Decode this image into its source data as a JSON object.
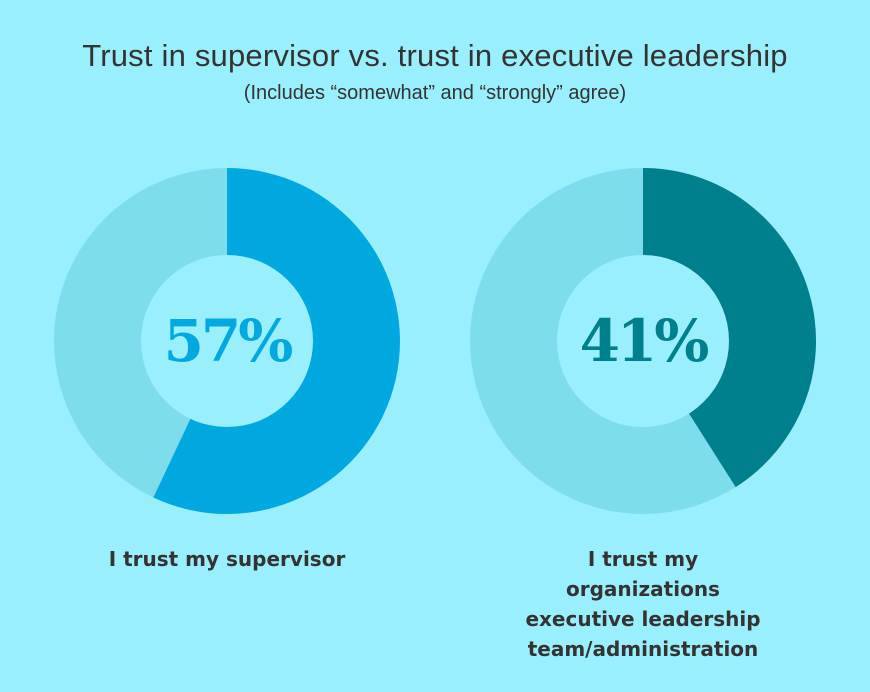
{
  "background": "#9AEFFF",
  "chart_data": {
    "type": "pie",
    "title": "Trust in supervisor vs. trust in executive leadership",
    "subtitle": "(Includes “somewhat” and “strongly” agree)",
    "charts": [
      {
        "value": 57,
        "value_label": "57%",
        "label": "I trust my supervisor",
        "fill_color": "#00A8E0",
        "remainder_color": "#7EDDED",
        "text_color": "#00A8E0",
        "hole_color": "#9AEFFF"
      },
      {
        "value": 41,
        "value_label": "41%",
        "label_lines": [
          "I trust my",
          "organizations",
          "executive leadership",
          "team/administration"
        ],
        "fill_color": "#007F8C",
        "remainder_color": "#7EDDED",
        "text_color": "#007F8C",
        "hole_color": "#9AEFFF"
      }
    ]
  }
}
